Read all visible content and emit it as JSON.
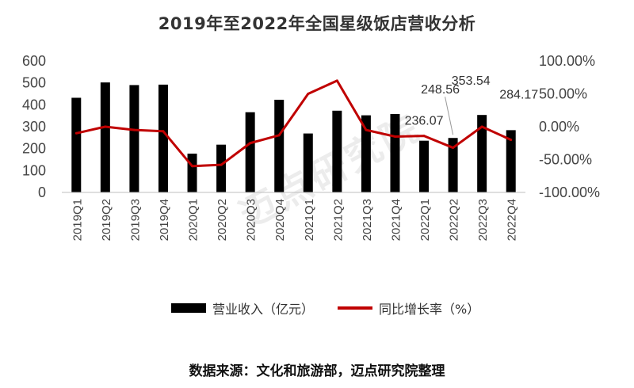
{
  "chart_data": {
    "type": "bar",
    "title": "2019年至2022年全国星级饭店营收分析",
    "categories": [
      "2019Q1",
      "2019Q2",
      "2019Q3",
      "2019Q4",
      "2020Q1",
      "2020Q2",
      "2020Q3",
      "2020Q4",
      "2021Q1",
      "2021Q2",
      "2021Q3",
      "2021Q4",
      "2022Q1",
      "2022Q2",
      "2022Q3",
      "2022Q4"
    ],
    "series": [
      {
        "name": "营业收入（亿元）",
        "type": "bar",
        "axis": "left",
        "color": "#000000",
        "values": [
          432,
          502,
          490,
          492,
          177,
          218,
          366,
          423,
          269,
          373,
          352,
          358,
          236.07,
          248.56,
          353.54,
          284.17
        ]
      },
      {
        "name": "同比增长率（%）",
        "type": "line",
        "axis": "right",
        "color": "#c00000",
        "values": [
          -10,
          0,
          -5,
          -7,
          -60,
          -58,
          -25,
          -13,
          50,
          70,
          -5,
          -15,
          -14,
          -32,
          0,
          -20
        ]
      }
    ],
    "y_left": {
      "ticks": [
        "0",
        "100",
        "200",
        "300",
        "400",
        "500",
        "600"
      ],
      "ylim": [
        0,
        600
      ]
    },
    "y_right": {
      "ticks": [
        "-100.00%",
        "-50.00%",
        "0.00%",
        "50.00%",
        "100.00%"
      ],
      "ylim": [
        -100,
        100
      ]
    },
    "data_labels": [
      {
        "index": 12,
        "text": "236.07"
      },
      {
        "index": 13,
        "text": "248.56"
      },
      {
        "index": 14,
        "text": "353.54"
      },
      {
        "index": 15,
        "text": "284.17"
      }
    ],
    "legend_position": "bottom",
    "grid": false
  },
  "legend": {
    "bar_label": "营业收入（亿元）",
    "line_label": "同比增长率（%）"
  },
  "source": "数据来源：文化和旅游部，迈点研究院整理",
  "watermark": "迈点研究院"
}
